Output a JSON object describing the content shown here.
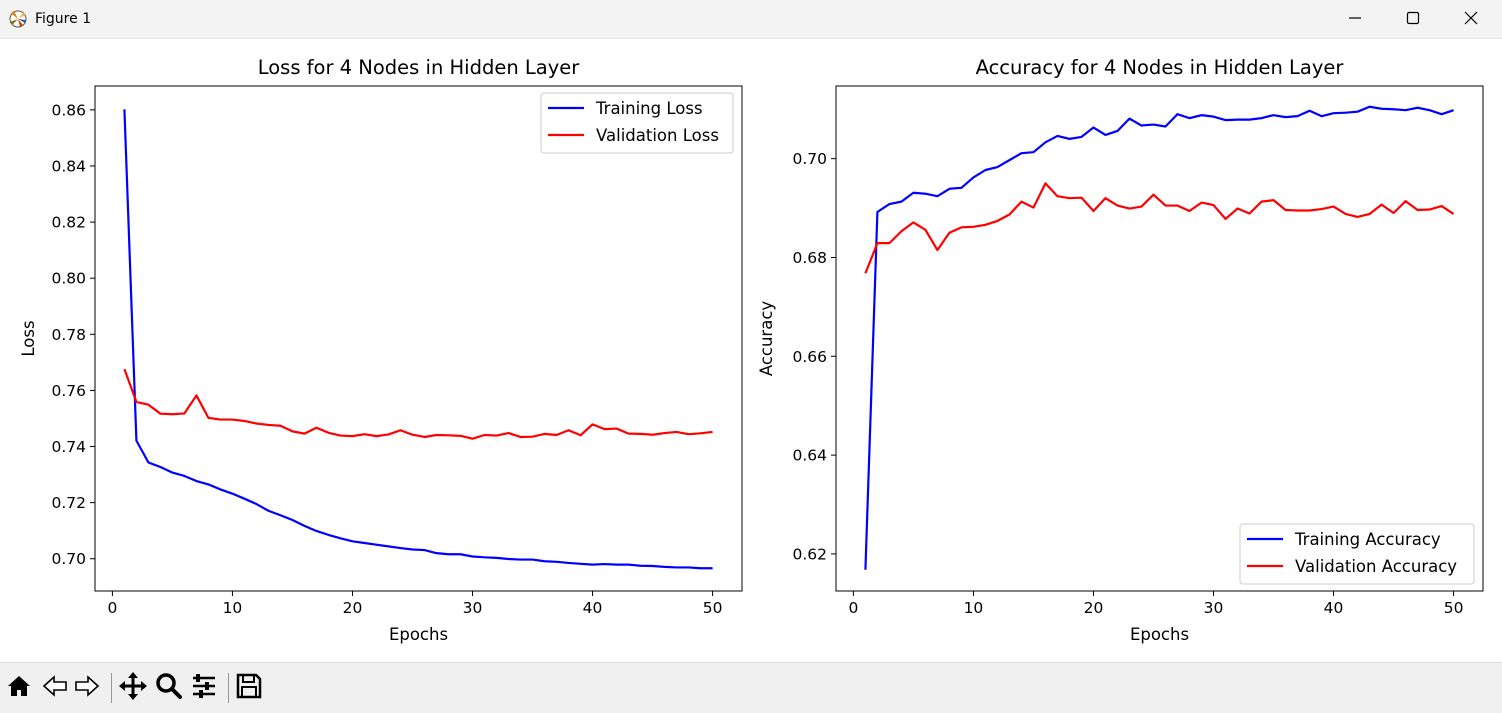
{
  "window": {
    "title": "Figure 1",
    "controls": [
      "minimize-icon",
      "maximize-icon",
      "close-icon"
    ]
  },
  "toolbar": {
    "buttons": [
      "home-icon",
      "back-icon",
      "forward-icon",
      "pan-icon",
      "zoom-icon",
      "configure-subplots-icon",
      "save-icon"
    ]
  },
  "chart_data": [
    {
      "type": "line",
      "title": "Loss for 4 Nodes in Hidden Layer",
      "xlabel": "Epochs",
      "ylabel": "Loss",
      "xlim": [
        -1.45,
        52.45
      ],
      "ylim": [
        0.6885,
        0.8685
      ],
      "xticks": [
        0,
        10,
        20,
        30,
        40,
        50
      ],
      "xtick_labels": [
        "0",
        "10",
        "20",
        "30",
        "40",
        "50"
      ],
      "yticks": [
        0.7,
        0.72,
        0.74,
        0.76,
        0.78,
        0.8,
        0.82,
        0.84,
        0.86
      ],
      "ytick_labels": [
        "0.70",
        "0.72",
        "0.74",
        "0.76",
        "0.78",
        "0.80",
        "0.82",
        "0.84",
        "0.86"
      ],
      "legend_position": "upper right",
      "grid": false,
      "x": [
        1,
        2,
        3,
        4,
        5,
        6,
        7,
        8,
        9,
        10,
        11,
        12,
        13,
        14,
        15,
        16,
        17,
        18,
        19,
        20,
        21,
        22,
        23,
        24,
        25,
        26,
        27,
        28,
        29,
        30,
        31,
        32,
        33,
        34,
        35,
        36,
        37,
        38,
        39,
        40,
        41,
        42,
        43,
        44,
        45,
        46,
        47,
        48,
        49,
        50
      ],
      "series": [
        {
          "name": "Training Loss",
          "color": "#0000ff",
          "values": [
            0.8602,
            0.7421,
            0.7343,
            0.7327,
            0.7307,
            0.7295,
            0.7277,
            0.7265,
            0.7247,
            0.7232,
            0.7214,
            0.7195,
            0.7171,
            0.7155,
            0.7138,
            0.7117,
            0.7099,
            0.7085,
            0.7073,
            0.7062,
            0.7056,
            0.705,
            0.7044,
            0.7038,
            0.7033,
            0.7031,
            0.702,
            0.7016,
            0.7016,
            0.7008,
            0.7005,
            0.7003,
            0.6999,
            0.6997,
            0.6997,
            0.6991,
            0.6989,
            0.6985,
            0.6982,
            0.6979,
            0.6981,
            0.6979,
            0.6979,
            0.6975,
            0.6974,
            0.6971,
            0.6969,
            0.6969,
            0.6966,
            0.6966
          ]
        },
        {
          "name": "Validation Loss",
          "color": "#ff0000",
          "values": [
            0.7676,
            0.7559,
            0.7549,
            0.7517,
            0.7515,
            0.7518,
            0.7582,
            0.7502,
            0.7496,
            0.7496,
            0.7491,
            0.7482,
            0.7477,
            0.7474,
            0.7454,
            0.7446,
            0.7467,
            0.7449,
            0.7439,
            0.7437,
            0.7444,
            0.7437,
            0.7443,
            0.7458,
            0.7442,
            0.7434,
            0.7441,
            0.744,
            0.7438,
            0.7428,
            0.7441,
            0.7439,
            0.7448,
            0.7434,
            0.7435,
            0.7445,
            0.7441,
            0.7458,
            0.744,
            0.7479,
            0.7462,
            0.7464,
            0.7446,
            0.7445,
            0.7442,
            0.7448,
            0.7452,
            0.7444,
            0.7447,
            0.7452
          ]
        }
      ]
    },
    {
      "type": "line",
      "title": "Accuracy for 4 Nodes in Hidden Layer",
      "xlabel": "Epochs",
      "ylabel": "Accuracy",
      "xlim": [
        -1.45,
        52.45
      ],
      "ylim": [
        0.6125,
        0.7147
      ],
      "xticks": [
        0,
        10,
        20,
        30,
        40,
        50
      ],
      "xtick_labels": [
        "0",
        "10",
        "20",
        "30",
        "40",
        "50"
      ],
      "yticks": [
        0.62,
        0.64,
        0.66,
        0.68,
        0.7
      ],
      "ytick_labels": [
        "0.62",
        "0.64",
        "0.66",
        "0.68",
        "0.70"
      ],
      "legend_position": "lower right",
      "grid": false,
      "x": [
        1,
        2,
        3,
        4,
        5,
        6,
        7,
        8,
        9,
        10,
        11,
        12,
        13,
        14,
        15,
        16,
        17,
        18,
        19,
        20,
        21,
        22,
        23,
        24,
        25,
        26,
        27,
        28,
        29,
        30,
        31,
        32,
        33,
        34,
        35,
        36,
        37,
        38,
        39,
        40,
        41,
        42,
        43,
        44,
        45,
        46,
        47,
        48,
        49,
        50
      ],
      "series": [
        {
          "name": "Training Accuracy",
          "color": "#0000ff",
          "values": [
            0.6168,
            0.6892,
            0.6908,
            0.6913,
            0.6931,
            0.6929,
            0.6924,
            0.6939,
            0.6941,
            0.6962,
            0.6977,
            0.6983,
            0.6997,
            0.7011,
            0.7013,
            0.7033,
            0.7046,
            0.704,
            0.7044,
            0.7063,
            0.7048,
            0.7056,
            0.7081,
            0.7067,
            0.7069,
            0.7065,
            0.709,
            0.7082,
            0.7088,
            0.7085,
            0.7078,
            0.7079,
            0.7079,
            0.7082,
            0.7088,
            0.7084,
            0.7086,
            0.7097,
            0.7086,
            0.7092,
            0.7093,
            0.7095,
            0.7105,
            0.7101,
            0.71,
            0.7098,
            0.7103,
            0.7098,
            0.709,
            0.7098
          ]
        },
        {
          "name": "Validation Accuracy",
          "color": "#ff0000",
          "values": [
            0.6768,
            0.6829,
            0.6829,
            0.6853,
            0.6871,
            0.6856,
            0.6815,
            0.685,
            0.6861,
            0.6862,
            0.6866,
            0.6874,
            0.6887,
            0.6913,
            0.6901,
            0.695,
            0.6924,
            0.692,
            0.6921,
            0.6894,
            0.692,
            0.6905,
            0.6899,
            0.6903,
            0.6927,
            0.6905,
            0.6905,
            0.6894,
            0.6911,
            0.6906,
            0.6878,
            0.6899,
            0.6889,
            0.6913,
            0.6916,
            0.6896,
            0.6895,
            0.6895,
            0.6898,
            0.6903,
            0.6888,
            0.6882,
            0.6888,
            0.6907,
            0.689,
            0.6914,
            0.6896,
            0.6897,
            0.6904,
            0.6888
          ]
        }
      ]
    }
  ]
}
